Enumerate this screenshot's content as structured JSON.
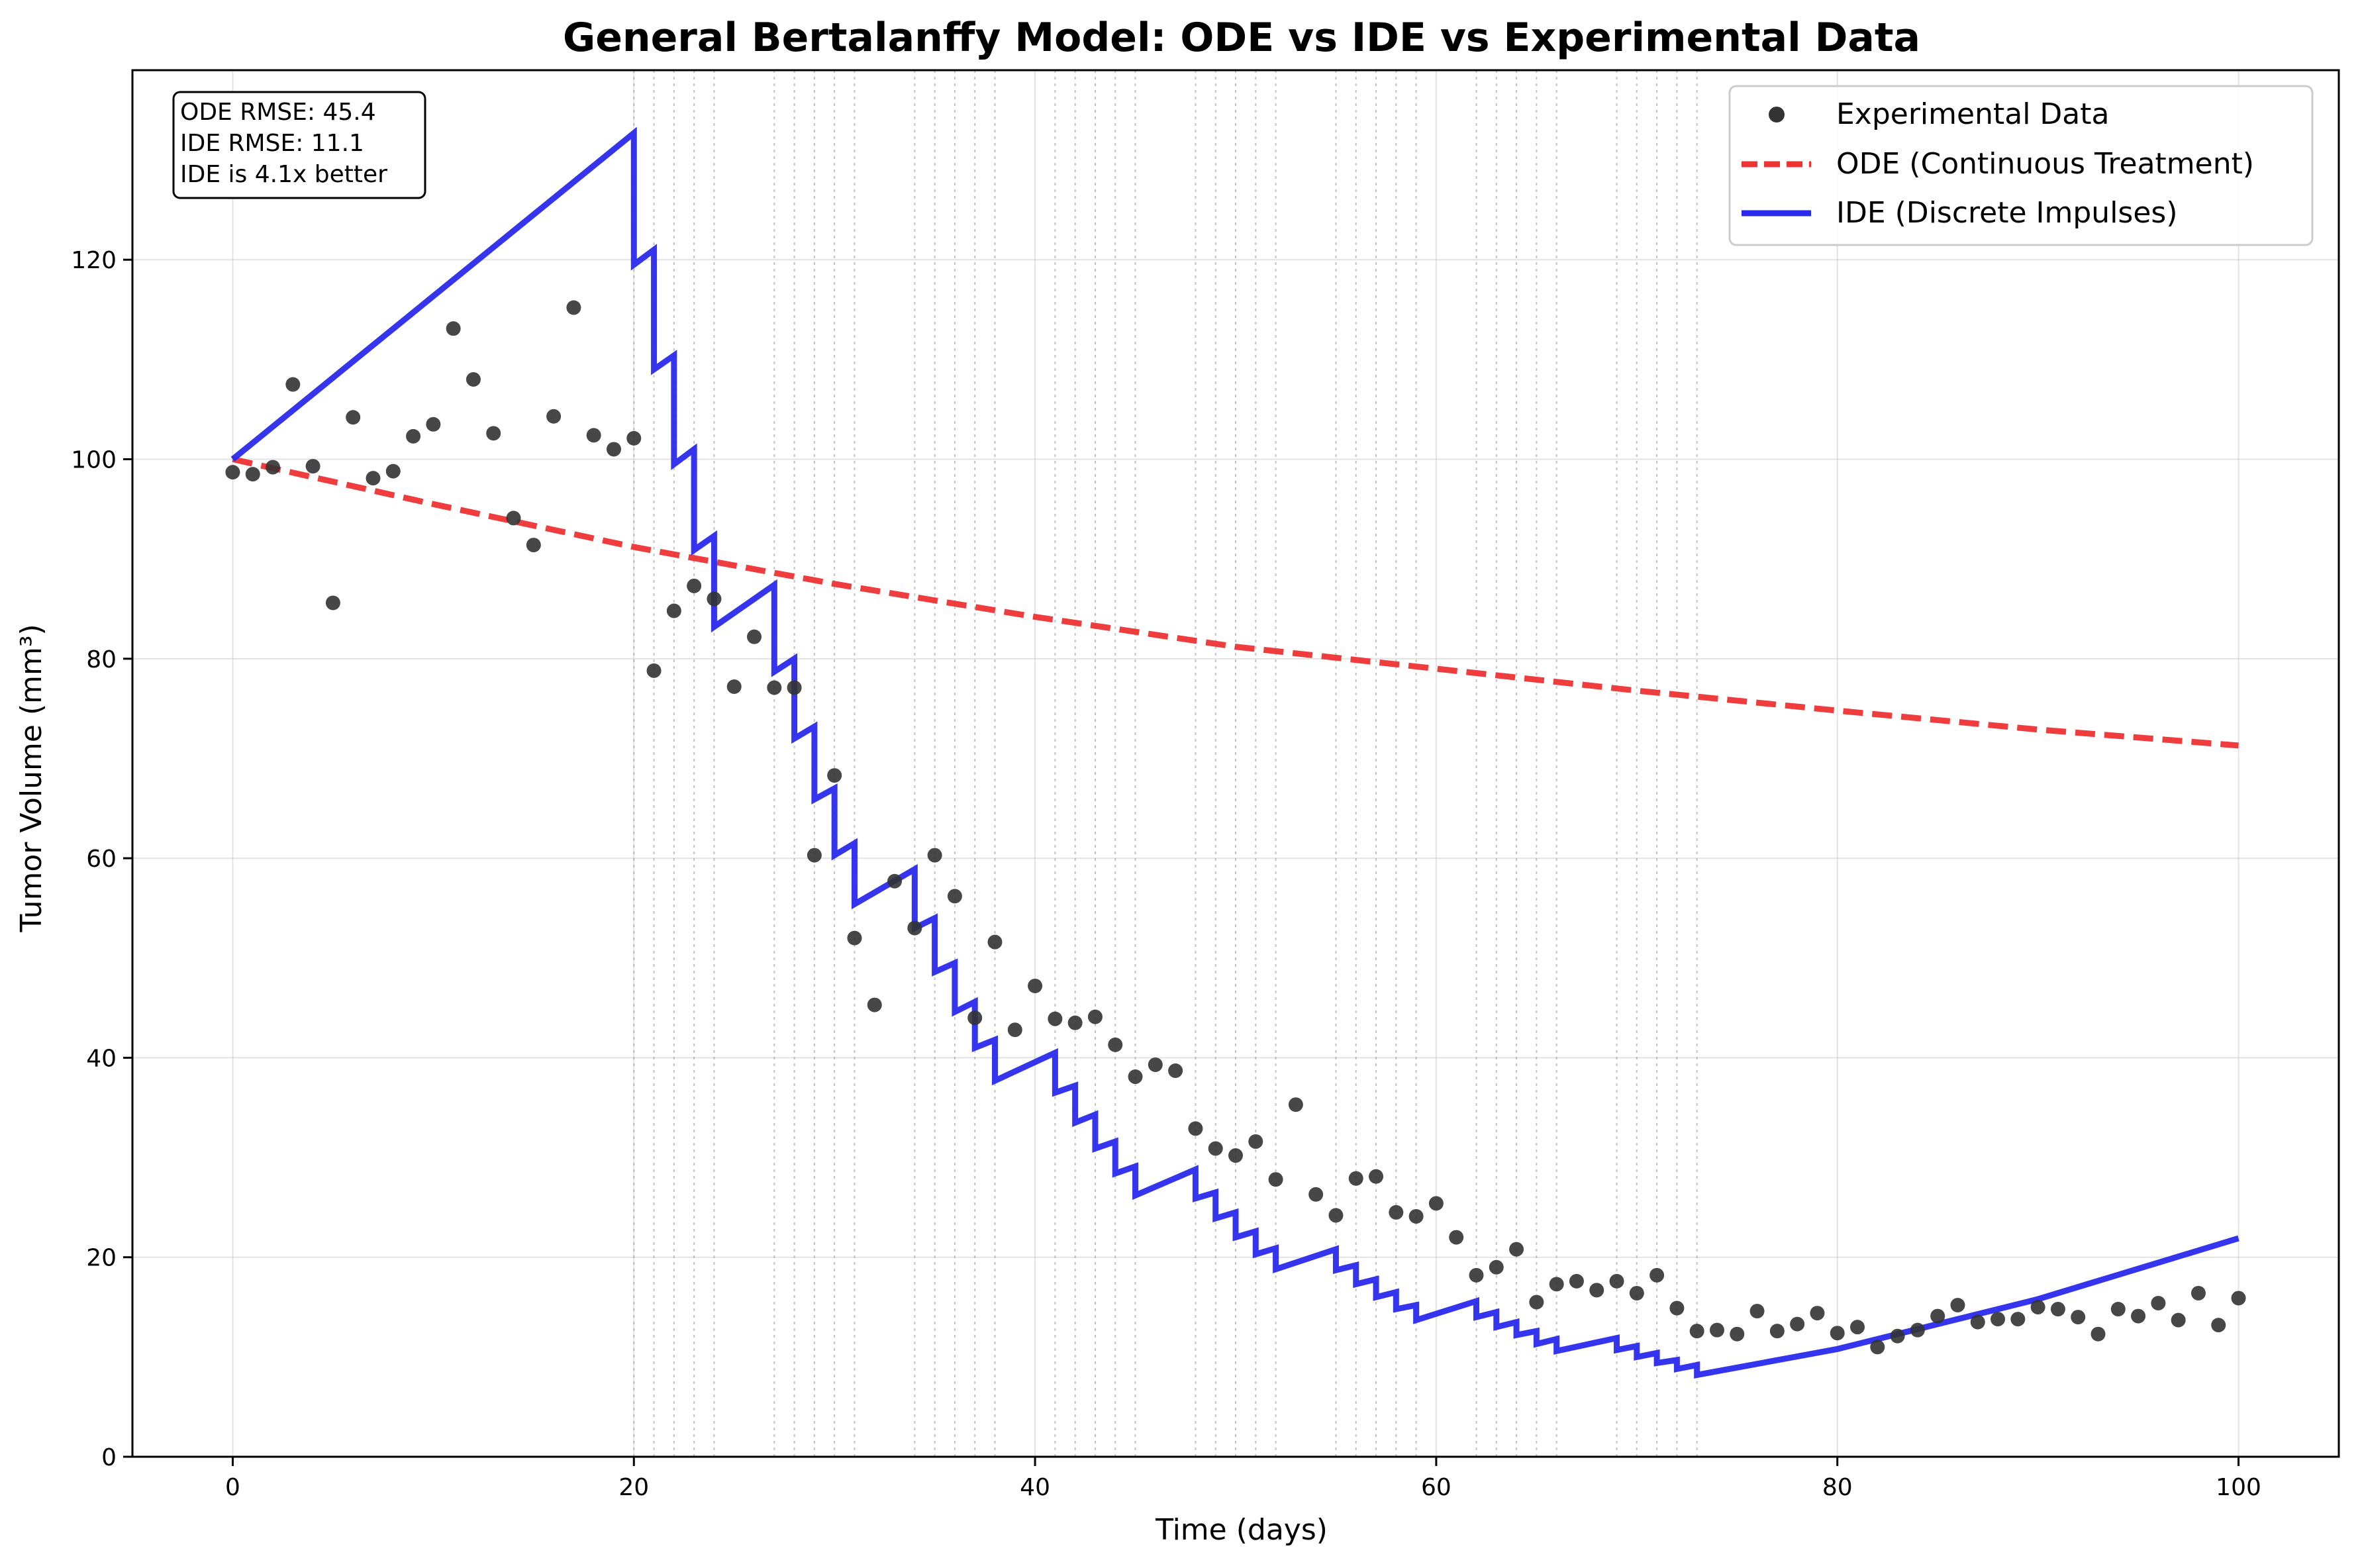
{
  "chart_data": {
    "type": "line",
    "title": "General Bertalanffy Model: ODE vs IDE vs Experimental Data",
    "xlabel": "Time (days)",
    "ylabel": "Tumor Volume (mm³)",
    "xlim": [
      -5,
      105
    ],
    "ylim": [
      0,
      139
    ],
    "x_ticks": [
      0,
      20,
      40,
      60,
      80,
      100
    ],
    "y_ticks": [
      0,
      20,
      40,
      60,
      80,
      100,
      120
    ],
    "grid": true,
    "legend_position": "top-right",
    "annotation_lines": [
      "ODE RMSE: 45.4",
      "IDE RMSE: 11.1",
      "IDE is 4.1x better"
    ],
    "impulse_days": [
      20,
      21,
      22,
      23,
      24,
      27,
      28,
      29,
      30,
      31,
      34,
      35,
      36,
      37,
      38,
      41,
      42,
      43,
      44,
      45,
      48,
      49,
      50,
      51,
      52,
      55,
      56,
      57,
      58,
      59,
      62,
      63,
      64,
      65,
      66,
      69,
      70,
      71,
      72,
      73
    ],
    "series": [
      {
        "name": "Experimental Data",
        "kind": "scatter",
        "color": "#333333",
        "x": [
          0,
          1,
          2,
          3,
          4,
          5,
          6,
          7,
          8,
          9,
          10,
          11,
          12,
          13,
          14,
          15,
          16,
          17,
          18,
          19,
          20,
          21,
          22,
          23,
          24,
          25,
          26,
          27,
          28,
          29,
          30,
          31,
          32,
          33,
          34,
          35,
          36,
          37,
          38,
          39,
          40,
          41,
          42,
          43,
          44,
          45,
          46,
          47,
          48,
          49,
          50,
          51,
          52,
          53,
          54,
          55,
          56,
          57,
          58,
          59,
          60,
          61,
          62,
          63,
          64,
          65,
          66,
          67,
          68,
          69,
          70,
          71,
          72,
          73,
          74,
          75,
          76,
          77,
          78,
          79,
          80,
          81,
          82,
          83,
          84,
          85,
          86,
          87,
          88,
          89,
          90,
          91,
          92,
          93,
          94,
          95,
          96,
          97,
          98,
          99,
          100
        ],
        "y": [
          98.7,
          98.5,
          99.2,
          107.5,
          99.3,
          85.6,
          104.2,
          98.1,
          98.8,
          102.3,
          103.5,
          113.1,
          108.0,
          102.6,
          94.1,
          91.4,
          104.3,
          115.2,
          102.4,
          101.0,
          102.1,
          78.8,
          84.8,
          87.3,
          86.0,
          77.2,
          82.2,
          77.1,
          77.1,
          60.3,
          68.3,
          52.0,
          45.3,
          57.7,
          53.0,
          60.3,
          56.2,
          44.0,
          51.6,
          42.8,
          47.2,
          43.9,
          43.5,
          44.1,
          41.3,
          38.1,
          39.3,
          38.7,
          32.9,
          30.9,
          30.2,
          31.6,
          27.8,
          35.3,
          26.3,
          24.2,
          27.9,
          28.1,
          24.5,
          24.1,
          25.4,
          22.0,
          18.2,
          19.0,
          20.8,
          15.5,
          17.3,
          17.6,
          16.7,
          17.6,
          16.4,
          18.2,
          14.9,
          12.6,
          12.7,
          12.3,
          14.6,
          12.6,
          13.3,
          14.4,
          12.4,
          13.0,
          11.0,
          12.1,
          12.7,
          14.1,
          15.2,
          13.5,
          13.8,
          13.8,
          15.0,
          14.8,
          14.0,
          12.3,
          14.8,
          14.1,
          15.4,
          13.7,
          16.4,
          13.2,
          15.9
        ]
      },
      {
        "name": "ODE (Continuous Treatment)",
        "kind": "line",
        "color": "#ee3333",
        "x": [
          0,
          10,
          20,
          30,
          40,
          50,
          60,
          70,
          80,
          90,
          100
        ],
        "y": [
          100,
          95.5,
          91.2,
          87.5,
          84.2,
          81.2,
          79.0,
          76.8,
          74.8,
          72.9,
          71.3
        ]
      },
      {
        "name": "IDE (Discrete Impulses)",
        "kind": "line",
        "color": "#2a2aee",
        "x": [
          0,
          20,
          20,
          21,
          21,
          22,
          22,
          23,
          23,
          24,
          24,
          27,
          27,
          28,
          28,
          29,
          29,
          30,
          30,
          31,
          31,
          34,
          34,
          35,
          35,
          36,
          36,
          37,
          37,
          38,
          38,
          41,
          41,
          42,
          42,
          43,
          43,
          44,
          44,
          45,
          45,
          48,
          48,
          49,
          49,
          50,
          50,
          51,
          51,
          52,
          52,
          55,
          55,
          56,
          56,
          57,
          57,
          58,
          58,
          59,
          59,
          62,
          62,
          63,
          63,
          64,
          64,
          65,
          65,
          66,
          66,
          69,
          69,
          70,
          70,
          71,
          71,
          72,
          72,
          73,
          73,
          80,
          90,
          100
        ],
        "y": [
          100,
          132.7,
          119.5,
          121.0,
          109.0,
          110.4,
          99.5,
          101.0,
          90.9,
          92.3,
          83.2,
          87.4,
          78.7,
          80.0,
          72.0,
          73.2,
          65.9,
          67.0,
          60.3,
          61.5,
          55.4,
          58.9,
          53.0,
          54.0,
          48.6,
          49.5,
          44.6,
          45.6,
          41.0,
          41.8,
          37.7,
          40.5,
          36.5,
          37.2,
          33.5,
          34.3,
          30.9,
          31.6,
          28.4,
          29.1,
          26.2,
          28.8,
          25.9,
          26.5,
          23.9,
          24.5,
          22.0,
          22.6,
          20.3,
          20.9,
          18.8,
          20.8,
          18.7,
          19.2,
          17.3,
          17.8,
          16.0,
          16.5,
          14.8,
          15.2,
          13.7,
          15.6,
          14.0,
          14.5,
          13.0,
          13.5,
          12.2,
          12.6,
          11.3,
          11.8,
          10.6,
          11.9,
          10.7,
          11.1,
          10.0,
          10.4,
          9.4,
          9.7,
          8.8,
          9.2,
          8.2,
          10.8,
          15.8,
          21.9
        ]
      }
    ]
  }
}
